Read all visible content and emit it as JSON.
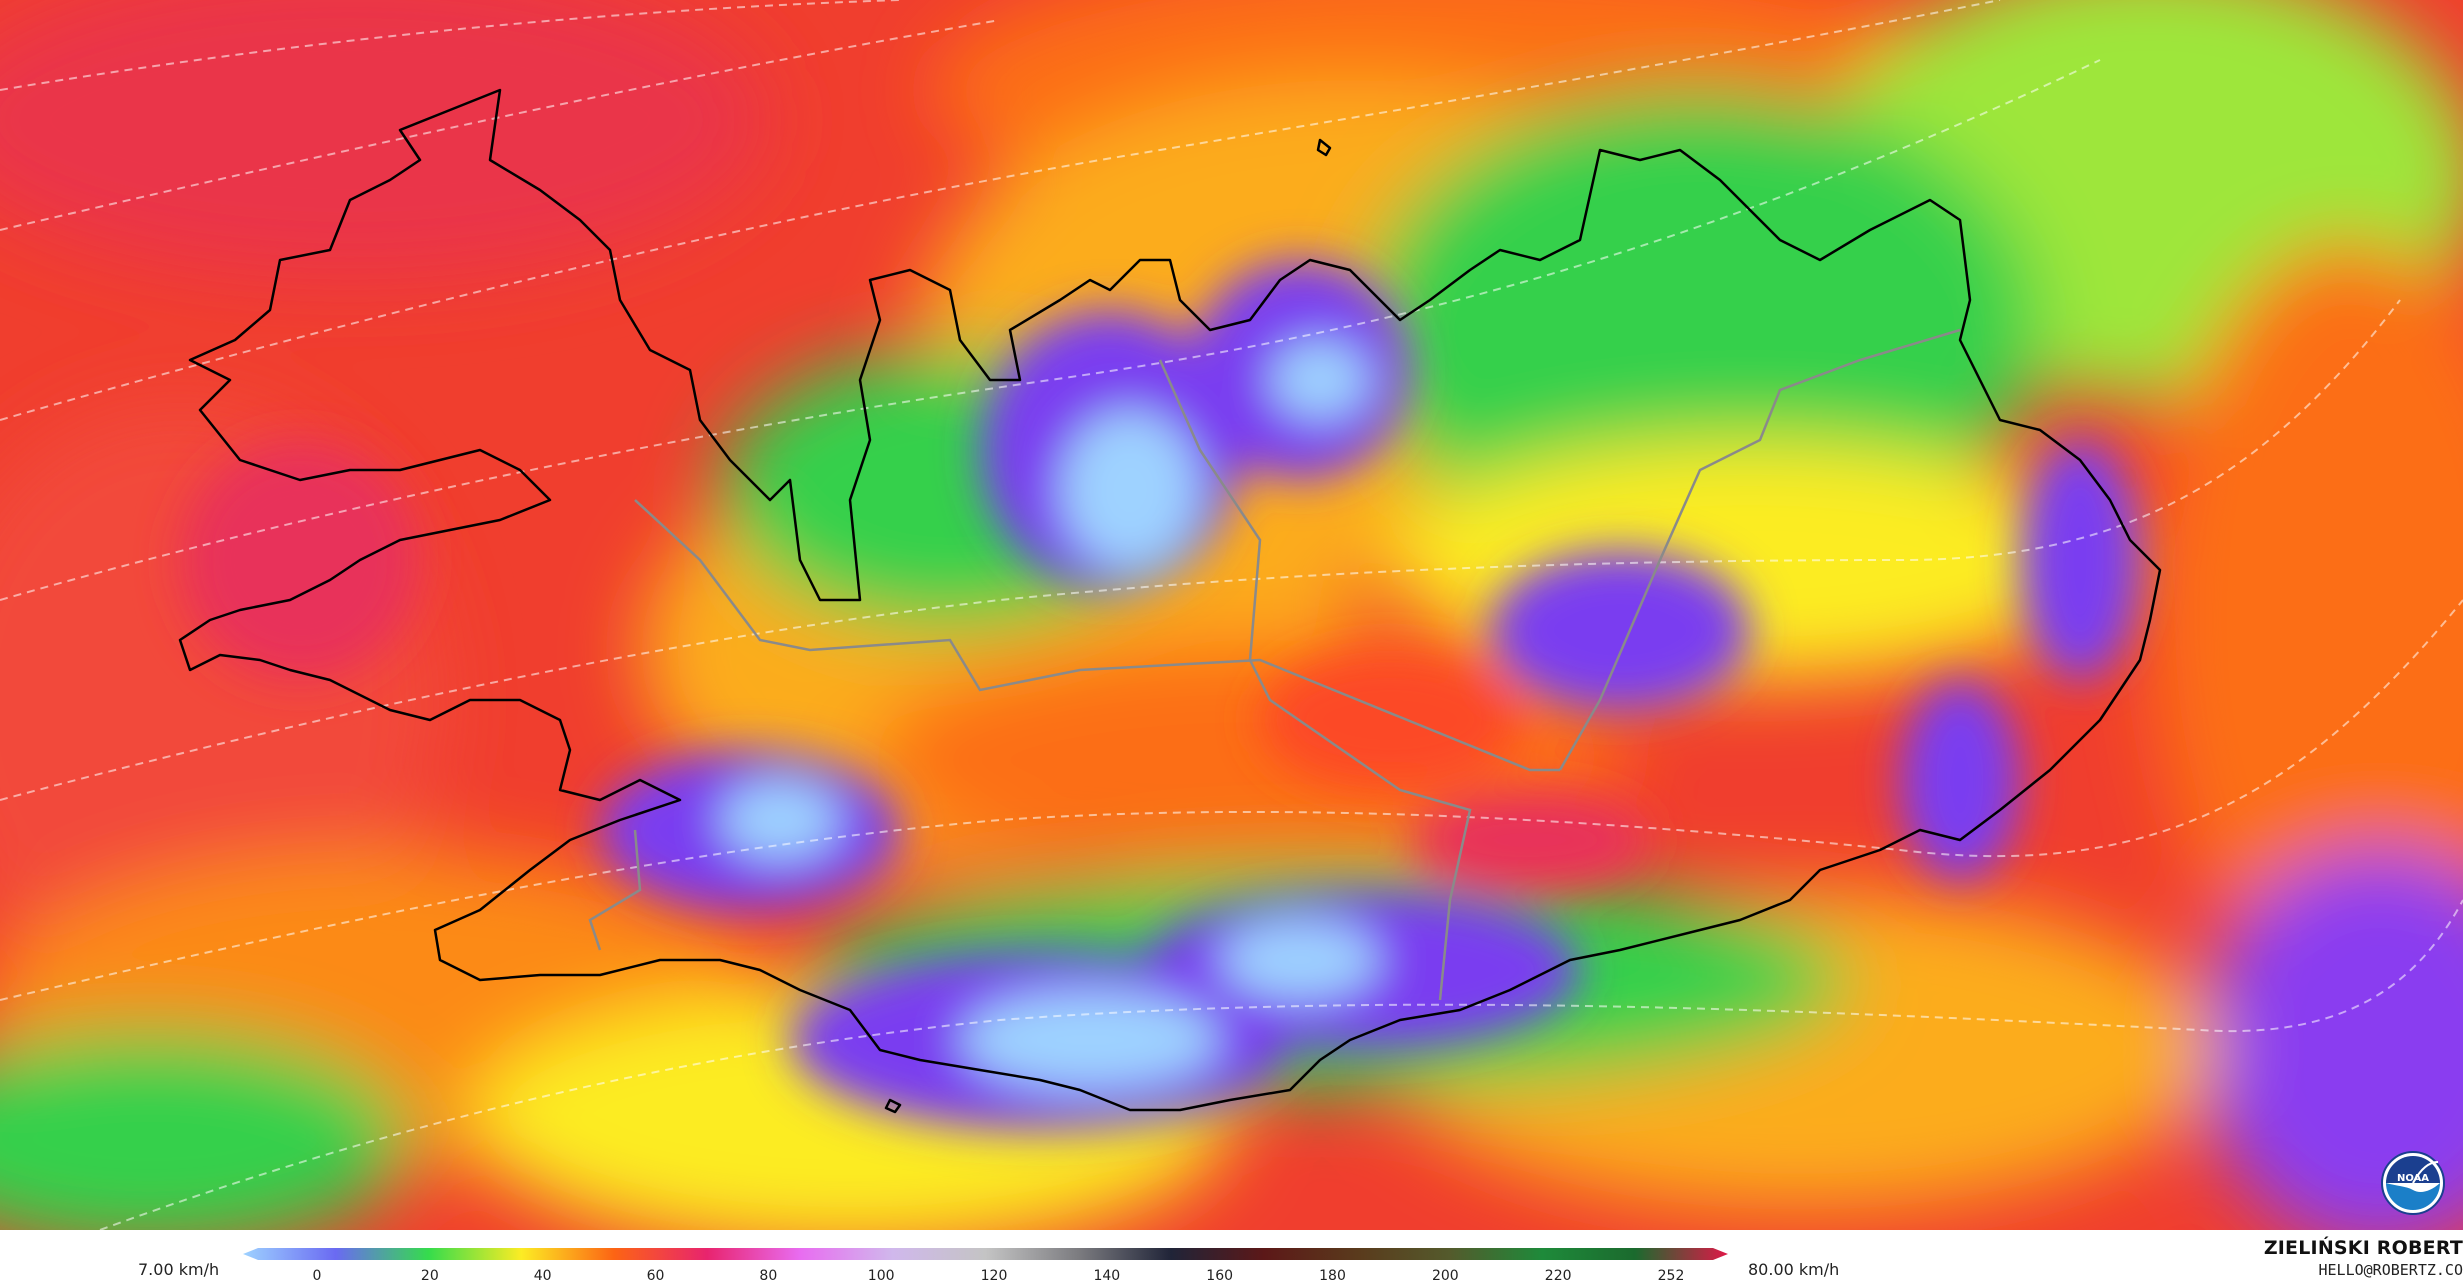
{
  "legend": {
    "min_value": "7.00 km/h",
    "max_value": "80.00 km/h",
    "ticks": [
      "0",
      "20",
      "40",
      "60",
      "80",
      "100",
      "120",
      "140",
      "160",
      "180",
      "200",
      "220",
      "252"
    ],
    "colors": [
      "#9ed2ff",
      "#6a6af2",
      "#35dc4c",
      "#fcec24",
      "#fc6414",
      "#e8246e",
      "#e86cf0",
      "#d0b8ec",
      "#c4c4c4",
      "#7c7c80",
      "#202438",
      "#5c1818",
      "#5a3a1c",
      "#545a2c",
      "#1e8a3a",
      "#1b6a2e",
      "#e01848"
    ]
  },
  "author": {
    "name": "ZIELIŃSKI ROBERT",
    "email": "HELLO@ROBERTZ.CO"
  },
  "logo": {
    "label": "NOAA",
    "icon": "noaa-logo-icon"
  },
  "map": {
    "field_colors": {
      "extreme": "#e8305a",
      "very_high": "#f24a3a",
      "high": "#fc6e14",
      "mid_high": "#fcac1c",
      "mid": "#fcec24",
      "mid_low": "#b2e43a",
      "low": "#35d04c",
      "very_low": "#7a3cf0",
      "calm": "#9ed2ff",
      "coastline": "#000000",
      "isoline": "#ffffff"
    }
  }
}
